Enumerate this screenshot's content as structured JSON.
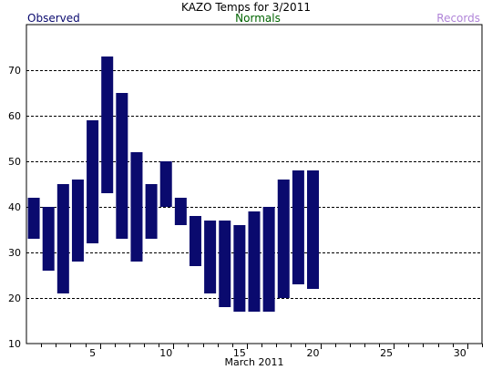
{
  "title": "KAZO Temps for  3/2011",
  "legend": {
    "observed": "Observed",
    "normals": "Normals",
    "records": "Records"
  },
  "colors": {
    "observed": "#0a0a6e",
    "normals": "#006400",
    "records": "#b084d8",
    "grid": "#000000",
    "background": "#ffffff"
  },
  "chart_data": {
    "type": "bar",
    "title": "KAZO Temps for  3/2011",
    "xlabel": "March 2011",
    "ylabel": "",
    "xlim": [
      1,
      31
    ],
    "ylim": [
      10,
      80
    ],
    "x_ticks": [
      5,
      10,
      15,
      20,
      25,
      30
    ],
    "y_ticks": [
      10,
      20,
      30,
      40,
      50,
      60,
      70
    ],
    "grid": "dashed horizontal at y ticks",
    "legend_placement": "top",
    "series": [
      {
        "name": "Observed",
        "kind": "range",
        "days": [
          1,
          2,
          3,
          4,
          5,
          6,
          7,
          8,
          9,
          10,
          11,
          12,
          13,
          14,
          15,
          16,
          17,
          18,
          19,
          20
        ],
        "high": [
          42,
          40,
          45,
          46,
          59,
          73,
          65,
          52,
          45,
          50,
          42,
          38,
          37,
          37,
          36,
          39,
          40,
          46,
          48,
          48
        ],
        "low": [
          33,
          26,
          21,
          28,
          32,
          43,
          33,
          28,
          33,
          40,
          36,
          27,
          21,
          18,
          17,
          17,
          17,
          20,
          23,
          22
        ]
      }
    ]
  }
}
